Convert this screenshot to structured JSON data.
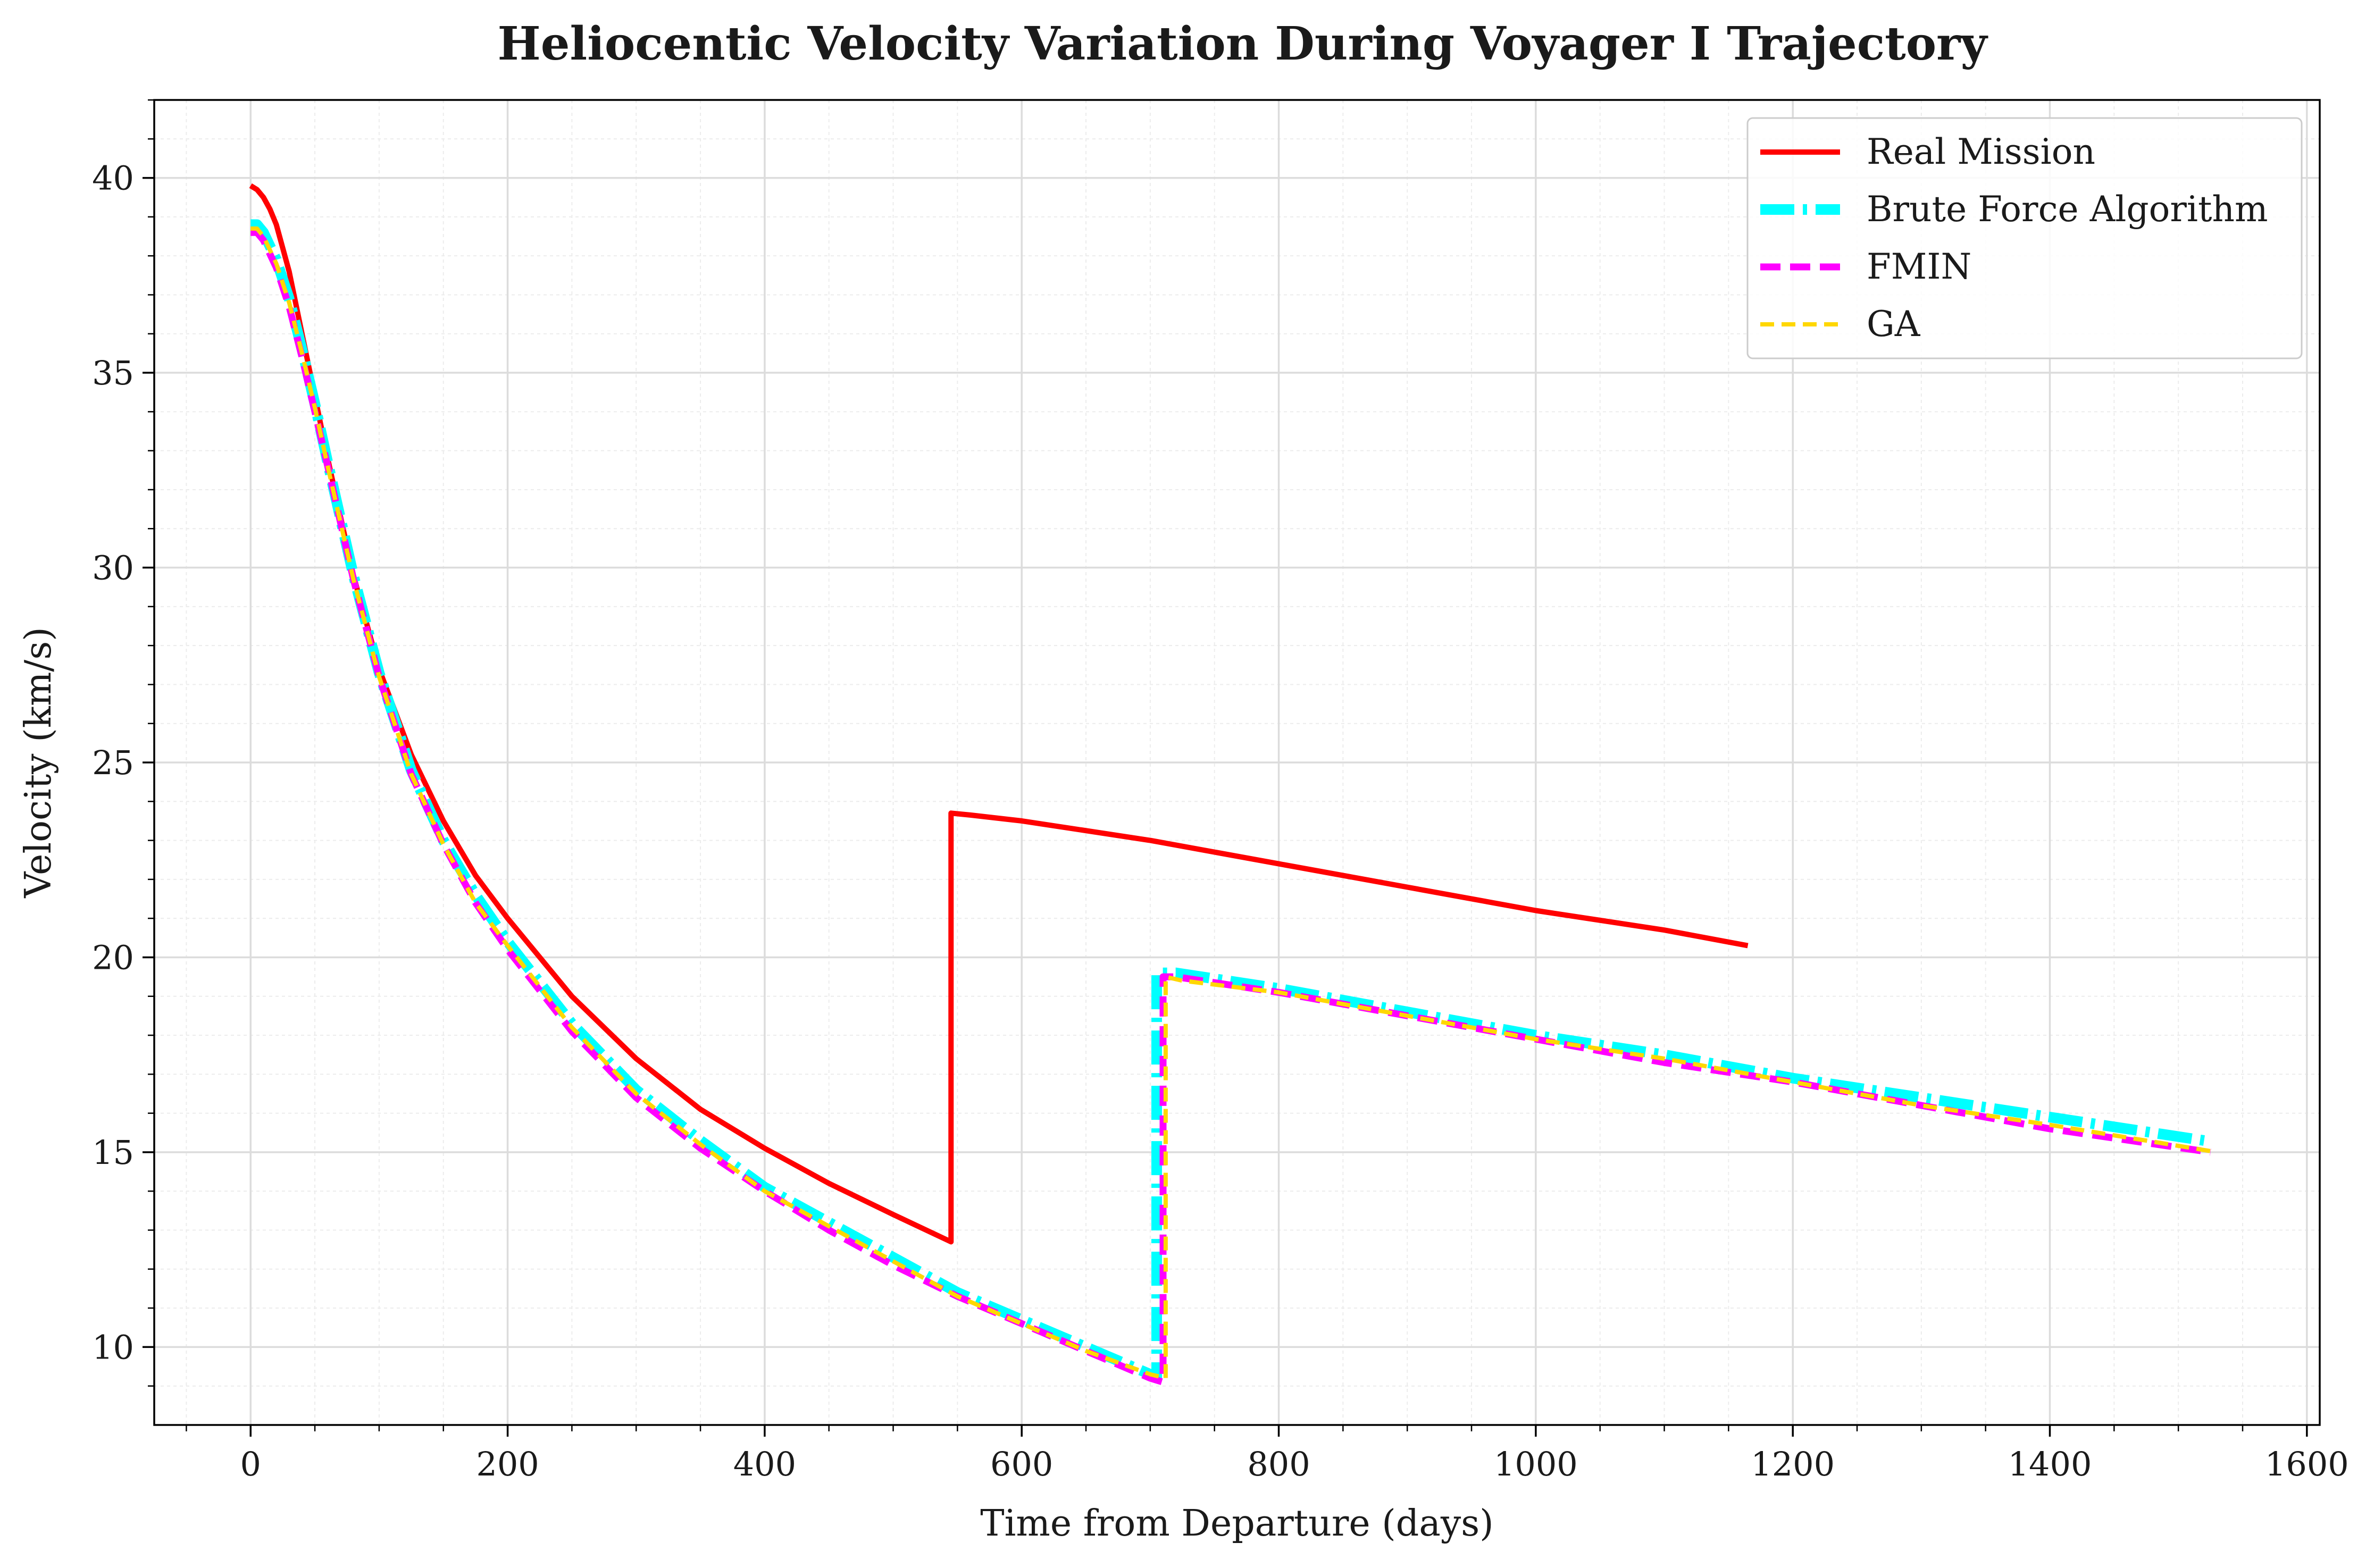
{
  "chart_data": {
    "type": "line",
    "title": "Heliocentic Velocity Variation During Voyager I Trajectory",
    "xlabel": "Time from Departure (days)",
    "ylabel": "Velocity (km/s)",
    "xlim": [
      -75,
      1610
    ],
    "ylim": [
      8,
      42
    ],
    "xticks": [
      0,
      200,
      400,
      600,
      800,
      1000,
      1200,
      1400,
      1600
    ],
    "yticks": [
      10,
      15,
      20,
      25,
      30,
      35,
      40
    ],
    "xtick_labels": [
      "0",
      "200",
      "400",
      "600",
      "800",
      "1000",
      "1200",
      "1400",
      "1600"
    ],
    "ytick_labels": [
      "10",
      "15",
      "20",
      "25",
      "30",
      "35",
      "40"
    ],
    "grid": true,
    "minor_grid": true,
    "legend_position": "top-right",
    "series": [
      {
        "name": "Real Mission",
        "color": "#ff0000",
        "style": "solid",
        "x": [
          0,
          5,
          10,
          15,
          20,
          30,
          40,
          50,
          60,
          80,
          100,
          125,
          150,
          175,
          200,
          250,
          300,
          350,
          400,
          450,
          500,
          545,
          545,
          560,
          600,
          700,
          800,
          900,
          1000,
          1100,
          1165
        ],
        "y": [
          39.8,
          39.7,
          39.5,
          39.2,
          38.8,
          37.6,
          36.0,
          34.4,
          32.8,
          29.8,
          27.4,
          25.2,
          23.5,
          22.1,
          21.0,
          19.0,
          17.4,
          16.1,
          15.1,
          14.2,
          13.4,
          12.7,
          23.7,
          23.65,
          23.5,
          23.0,
          22.4,
          21.8,
          21.2,
          20.7,
          20.3
        ]
      },
      {
        "name": "Brute Force Algorithm",
        "color": "#00ffff",
        "style": "dash-dot",
        "x": [
          0,
          5,
          10,
          20,
          30,
          40,
          50,
          60,
          80,
          100,
          125,
          150,
          175,
          200,
          250,
          300,
          350,
          400,
          450,
          500,
          550,
          600,
          650,
          700,
          705,
          705,
          720,
          800,
          900,
          1000,
          1100,
          1200,
          1300,
          1400,
          1520
        ],
        "y": [
          38.8,
          38.8,
          38.6,
          37.9,
          36.9,
          35.6,
          34.2,
          32.7,
          29.8,
          27.3,
          24.8,
          23.0,
          21.6,
          20.4,
          18.3,
          16.6,
          15.3,
          14.1,
          13.2,
          12.3,
          11.4,
          10.7,
          10.0,
          9.3,
          9.2,
          19.6,
          19.6,
          19.2,
          18.6,
          18.0,
          17.5,
          16.9,
          16.4,
          15.9,
          15.3
        ]
      },
      {
        "name": "FMIN",
        "color": "#ff00ff",
        "style": "dashed",
        "x": [
          0,
          5,
          10,
          20,
          30,
          40,
          50,
          60,
          80,
          100,
          125,
          150,
          175,
          200,
          250,
          300,
          350,
          400,
          450,
          500,
          550,
          600,
          650,
          700,
          710,
          710,
          720,
          800,
          900,
          1000,
          1100,
          1200,
          1300,
          1400,
          1525
        ],
        "y": [
          38.6,
          38.6,
          38.4,
          37.7,
          36.7,
          35.4,
          34.0,
          32.6,
          29.7,
          27.2,
          24.7,
          22.9,
          21.4,
          20.2,
          18.1,
          16.4,
          15.1,
          14.0,
          13.0,
          12.1,
          11.3,
          10.6,
          9.9,
          9.2,
          9.1,
          19.5,
          19.5,
          19.1,
          18.5,
          17.9,
          17.3,
          16.8,
          16.2,
          15.6,
          15.0
        ]
      },
      {
        "name": "GA",
        "color": "#ffd700",
        "style": "dashed",
        "x": [
          0,
          5,
          10,
          20,
          30,
          40,
          50,
          60,
          80,
          100,
          125,
          150,
          175,
          200,
          250,
          300,
          350,
          400,
          450,
          500,
          550,
          600,
          650,
          700,
          712,
          712,
          725,
          800,
          900,
          1000,
          1100,
          1200,
          1300,
          1400,
          1530
        ],
        "y": [
          38.7,
          38.7,
          38.5,
          37.8,
          36.8,
          35.5,
          34.1,
          32.6,
          29.7,
          27.2,
          24.7,
          22.9,
          21.4,
          20.3,
          18.2,
          16.5,
          15.2,
          14.0,
          13.1,
          12.2,
          11.3,
          10.6,
          9.9,
          9.3,
          9.2,
          19.5,
          19.4,
          19.1,
          18.5,
          17.9,
          17.4,
          16.8,
          16.2,
          15.7,
          15.0
        ]
      }
    ]
  }
}
